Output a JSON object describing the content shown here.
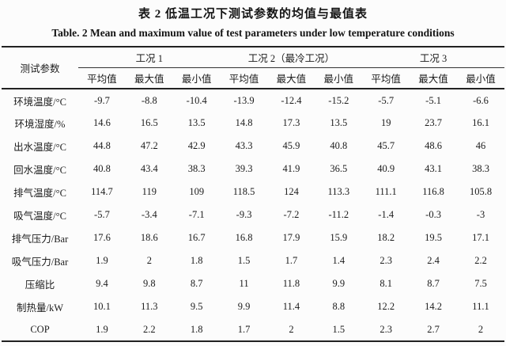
{
  "page": {
    "title_cn": "表 2 低温工况下测试参数的均值与最值表",
    "title_en": "Table. 2 Mean and maximum value of test parameters under low temperature conditions"
  },
  "table": {
    "param_header": "测试参数",
    "group_headers": [
      "工况 1",
      "工况 2（最冷工况）",
      "工况 3"
    ],
    "stat_headers": [
      "平均值",
      "最大值",
      "最小值"
    ],
    "rows": [
      {
        "label": "环境温度/°C",
        "values": [
          "-9.7",
          "-8.8",
          "-10.4",
          "-13.9",
          "-12.4",
          "-15.2",
          "-5.7",
          "-5.1",
          "-6.6"
        ]
      },
      {
        "label": "环境湿度/%",
        "values": [
          "14.6",
          "16.5",
          "13.5",
          "14.8",
          "17.3",
          "13.5",
          "19",
          "23.7",
          "16.1"
        ]
      },
      {
        "label": "出水温度/°C",
        "values": [
          "44.8",
          "47.2",
          "42.9",
          "43.3",
          "45.9",
          "40.8",
          "45.7",
          "48.6",
          "46"
        ]
      },
      {
        "label": "回水温度/°C",
        "values": [
          "40.8",
          "43.4",
          "38.3",
          "39.3",
          "41.9",
          "36.5",
          "40.9",
          "43.1",
          "38.3"
        ]
      },
      {
        "label": "排气温度/°C",
        "values": [
          "114.7",
          "119",
          "109",
          "118.5",
          "124",
          "113.3",
          "111.1",
          "116.8",
          "105.8"
        ]
      },
      {
        "label": "吸气温度/°C",
        "values": [
          "-5.7",
          "-3.4",
          "-7.1",
          "-9.3",
          "-7.2",
          "-11.2",
          "-1.4",
          "-0.3",
          "-3"
        ]
      },
      {
        "label": "排气压力/Bar",
        "values": [
          "17.6",
          "18.6",
          "16.7",
          "16.8",
          "17.9",
          "15.9",
          "18.2",
          "19.5",
          "17.1"
        ]
      },
      {
        "label": "吸气压力/Bar",
        "values": [
          "1.9",
          "2",
          "1.8",
          "1.5",
          "1.7",
          "1.4",
          "2.3",
          "2.4",
          "2.2"
        ]
      },
      {
        "label": "压缩比",
        "values": [
          "9.4",
          "9.8",
          "8.7",
          "11",
          "11.8",
          "9.9",
          "8.1",
          "8.7",
          "7.5"
        ]
      },
      {
        "label": "制热量/kW",
        "values": [
          "10.1",
          "11.3",
          "9.5",
          "9.9",
          "11.4",
          "8.8",
          "12.2",
          "14.2",
          "11.1"
        ]
      },
      {
        "label": "COP",
        "values": [
          "1.9",
          "2.2",
          "1.8",
          "1.7",
          "2",
          "1.5",
          "2.3",
          "2.7",
          "2"
        ]
      }
    ]
  },
  "colors": {
    "text": "#1c1c1c",
    "rule": "#222222",
    "background": "#fcfcfc"
  }
}
